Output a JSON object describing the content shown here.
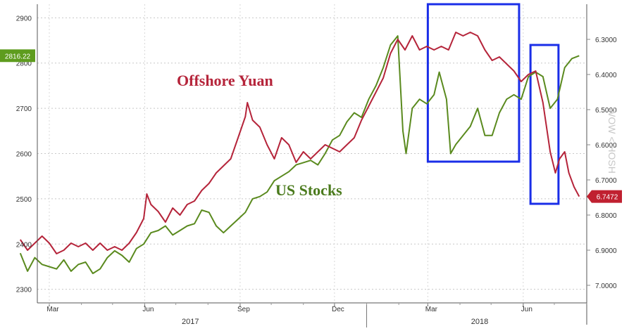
{
  "chart_data": {
    "type": "line",
    "title": "",
    "xlabel": "",
    "ylabel": "",
    "x_ticks": [
      "Mar",
      "Jun",
      "Sep",
      "Dec",
      "Mar",
      "Jun"
    ],
    "year_labels": [
      "2017",
      "2018"
    ],
    "left_axis": {
      "ticks": [
        "2900",
        "2800",
        "2700",
        "2600",
        "2500",
        "2400",
        "2300"
      ],
      "ylim": [
        2270,
        2930
      ]
    },
    "right_axis": {
      "ticks": [
        "6.3000",
        "6.4000",
        "6.5000",
        "6.6000",
        "6.7000",
        "6.8000",
        "6.9000",
        "7.0000"
      ],
      "ylim": [
        6.2,
        7.05
      ],
      "inverted": true
    },
    "annotations": [
      {
        "text": "Offshore Yuan",
        "color": "#b5243a"
      },
      {
        "text": "US Stocks",
        "color": "#4a7a1c"
      }
    ],
    "last_value_badges": [
      {
        "text": "2816.22",
        "color": "#5e9c1e"
      },
      {
        "text": "6.7472",
        "color": "#c02030"
      }
    ],
    "highlight_boxes": [
      {
        "from": "2018-03-01",
        "to": "2018-05-28",
        "color": "#1a2ee8"
      },
      {
        "from": "2018-06-08",
        "to": "2018-07-05",
        "color": "#1a2ee8"
      }
    ],
    "watermark": "WOW < HOSH",
    "series": [
      {
        "axis": "left",
        "color": "#5a8a1e",
        "points": [
          [
            "2017-02-01",
            2380
          ],
          [
            "2017-02-08",
            2340
          ],
          [
            "2017-02-15",
            2370
          ],
          [
            "2017-02-22",
            2355
          ],
          [
            "2017-03-01",
            2350
          ],
          [
            "2017-03-08",
            2345
          ],
          [
            "2017-03-15",
            2365
          ],
          [
            "2017-03-22",
            2340
          ],
          [
            "2017-03-29",
            2355
          ],
          [
            "2017-04-05",
            2360
          ],
          [
            "2017-04-12",
            2335
          ],
          [
            "2017-04-19",
            2345
          ],
          [
            "2017-04-26",
            2370
          ],
          [
            "2017-05-03",
            2385
          ],
          [
            "2017-05-10",
            2375
          ],
          [
            "2017-05-17",
            2360
          ],
          [
            "2017-05-24",
            2390
          ],
          [
            "2017-05-31",
            2400
          ],
          [
            "2017-06-07",
            2425
          ],
          [
            "2017-06-14",
            2430
          ],
          [
            "2017-06-21",
            2440
          ],
          [
            "2017-06-28",
            2420
          ],
          [
            "2017-07-05",
            2430
          ],
          [
            "2017-07-12",
            2440
          ],
          [
            "2017-07-19",
            2445
          ],
          [
            "2017-07-26",
            2475
          ],
          [
            "2017-08-02",
            2470
          ],
          [
            "2017-08-09",
            2440
          ],
          [
            "2017-08-16",
            2425
          ],
          [
            "2017-08-23",
            2440
          ],
          [
            "2017-08-30",
            2455
          ],
          [
            "2017-09-06",
            2470
          ],
          [
            "2017-09-13",
            2500
          ],
          [
            "2017-09-20",
            2505
          ],
          [
            "2017-09-27",
            2515
          ],
          [
            "2017-10-04",
            2540
          ],
          [
            "2017-10-11",
            2550
          ],
          [
            "2017-10-18",
            2560
          ],
          [
            "2017-10-25",
            2575
          ],
          [
            "2017-11-01",
            2580
          ],
          [
            "2017-11-08",
            2585
          ],
          [
            "2017-11-15",
            2575
          ],
          [
            "2017-11-22",
            2600
          ],
          [
            "2017-11-29",
            2630
          ],
          [
            "2017-12-06",
            2640
          ],
          [
            "2017-12-13",
            2670
          ],
          [
            "2017-12-20",
            2690
          ],
          [
            "2017-12-27",
            2680
          ],
          [
            "2018-01-03",
            2720
          ],
          [
            "2018-01-10",
            2750
          ],
          [
            "2018-01-17",
            2790
          ],
          [
            "2018-01-24",
            2840
          ],
          [
            "2018-01-31",
            2860
          ],
          [
            "2018-02-05",
            2650
          ],
          [
            "2018-02-08",
            2600
          ],
          [
            "2018-02-14",
            2700
          ],
          [
            "2018-02-21",
            2720
          ],
          [
            "2018-02-28",
            2710
          ],
          [
            "2018-03-07",
            2730
          ],
          [
            "2018-03-12",
            2780
          ],
          [
            "2018-03-19",
            2720
          ],
          [
            "2018-03-23",
            2600
          ],
          [
            "2018-03-28",
            2620
          ],
          [
            "2018-04-04",
            2640
          ],
          [
            "2018-04-11",
            2660
          ],
          [
            "2018-04-18",
            2700
          ],
          [
            "2018-04-25",
            2640
          ],
          [
            "2018-05-02",
            2640
          ],
          [
            "2018-05-09",
            2690
          ],
          [
            "2018-05-16",
            2720
          ],
          [
            "2018-05-23",
            2730
          ],
          [
            "2018-05-30",
            2720
          ],
          [
            "2018-06-06",
            2770
          ],
          [
            "2018-06-13",
            2780
          ],
          [
            "2018-06-20",
            2770
          ],
          [
            "2018-06-27",
            2700
          ],
          [
            "2018-07-04",
            2720
          ],
          [
            "2018-07-11",
            2790
          ],
          [
            "2018-07-18",
            2810
          ],
          [
            "2018-07-25",
            2816.22
          ]
        ]
      },
      {
        "axis": "right",
        "color": "#b5243a",
        "points": [
          [
            "2017-02-01",
            6.87
          ],
          [
            "2017-02-08",
            6.9
          ],
          [
            "2017-02-15",
            6.88
          ],
          [
            "2017-02-22",
            6.86
          ],
          [
            "2017-03-01",
            6.88
          ],
          [
            "2017-03-08",
            6.91
          ],
          [
            "2017-03-15",
            6.9
          ],
          [
            "2017-03-22",
            6.88
          ],
          [
            "2017-03-29",
            6.89
          ],
          [
            "2017-04-05",
            6.88
          ],
          [
            "2017-04-12",
            6.9
          ],
          [
            "2017-04-19",
            6.88
          ],
          [
            "2017-04-26",
            6.9
          ],
          [
            "2017-05-03",
            6.89
          ],
          [
            "2017-05-10",
            6.9
          ],
          [
            "2017-05-17",
            6.88
          ],
          [
            "2017-05-24",
            6.85
          ],
          [
            "2017-05-31",
            6.81
          ],
          [
            "2017-06-03",
            6.74
          ],
          [
            "2017-06-07",
            6.77
          ],
          [
            "2017-06-14",
            6.79
          ],
          [
            "2017-06-21",
            6.82
          ],
          [
            "2017-06-28",
            6.78
          ],
          [
            "2017-07-05",
            6.8
          ],
          [
            "2017-07-12",
            6.77
          ],
          [
            "2017-07-19",
            6.76
          ],
          [
            "2017-07-26",
            6.73
          ],
          [
            "2017-08-02",
            6.71
          ],
          [
            "2017-08-09",
            6.68
          ],
          [
            "2017-08-16",
            6.66
          ],
          [
            "2017-08-23",
            6.64
          ],
          [
            "2017-08-30",
            6.58
          ],
          [
            "2017-09-06",
            6.52
          ],
          [
            "2017-09-08",
            6.48
          ],
          [
            "2017-09-13",
            6.53
          ],
          [
            "2017-09-20",
            6.55
          ],
          [
            "2017-09-27",
            6.6
          ],
          [
            "2017-10-04",
            6.64
          ],
          [
            "2017-10-11",
            6.58
          ],
          [
            "2017-10-18",
            6.6
          ],
          [
            "2017-10-25",
            6.65
          ],
          [
            "2017-11-01",
            6.62
          ],
          [
            "2017-11-08",
            6.64
          ],
          [
            "2017-11-15",
            6.62
          ],
          [
            "2017-11-22",
            6.6
          ],
          [
            "2017-11-29",
            6.61
          ],
          [
            "2017-12-06",
            6.62
          ],
          [
            "2017-12-13",
            6.6
          ],
          [
            "2017-12-20",
            6.58
          ],
          [
            "2017-12-27",
            6.53
          ],
          [
            "2018-01-03",
            6.49
          ],
          [
            "2018-01-10",
            6.45
          ],
          [
            "2018-01-17",
            6.41
          ],
          [
            "2018-01-24",
            6.34
          ],
          [
            "2018-01-31",
            6.3
          ],
          [
            "2018-02-07",
            6.33
          ],
          [
            "2018-02-14",
            6.29
          ],
          [
            "2018-02-21",
            6.33
          ],
          [
            "2018-02-28",
            6.32
          ],
          [
            "2018-03-07",
            6.33
          ],
          [
            "2018-03-14",
            6.32
          ],
          [
            "2018-03-21",
            6.33
          ],
          [
            "2018-03-28",
            6.28
          ],
          [
            "2018-04-04",
            6.29
          ],
          [
            "2018-04-11",
            6.28
          ],
          [
            "2018-04-18",
            6.29
          ],
          [
            "2018-04-25",
            6.33
          ],
          [
            "2018-05-02",
            6.36
          ],
          [
            "2018-05-09",
            6.35
          ],
          [
            "2018-05-16",
            6.37
          ],
          [
            "2018-05-23",
            6.39
          ],
          [
            "2018-05-30",
            6.42
          ],
          [
            "2018-06-06",
            6.4
          ],
          [
            "2018-06-13",
            6.39
          ],
          [
            "2018-06-20",
            6.48
          ],
          [
            "2018-06-27",
            6.62
          ],
          [
            "2018-07-02",
            6.68
          ],
          [
            "2018-07-06",
            6.64
          ],
          [
            "2018-07-11",
            6.62
          ],
          [
            "2018-07-15",
            6.68
          ],
          [
            "2018-07-20",
            6.72
          ],
          [
            "2018-07-25",
            6.7472
          ]
        ]
      }
    ]
  }
}
